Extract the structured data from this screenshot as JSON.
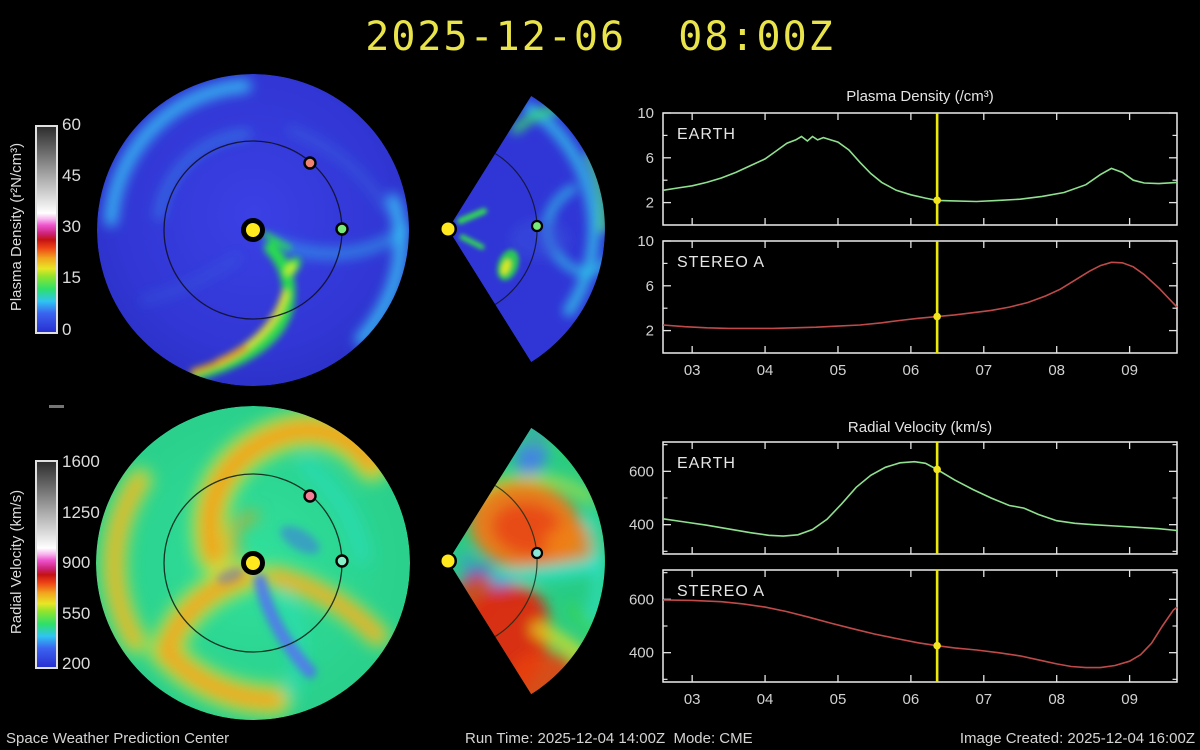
{
  "title": "2025-12-06  08:00Z",
  "footer": {
    "left": "Space Weather Prediction Center",
    "center": "Run Time: 2025-12-04 14:00Z  Mode: CME",
    "right": "Image Created: 2025-12-04 16:00Z"
  },
  "colorbars": [
    {
      "label": "Plasma Density (r²N/cm³)",
      "ticks": [
        "60",
        "45",
        "30",
        "15",
        "0"
      ],
      "gradient": [
        "#2830d0 0%",
        "#3b62f0 9%",
        "#2fc4f2 15%",
        "#2ee06a 21%",
        "#8ee42e 27%",
        "#e8e626 31%",
        "#f2a61e 36%",
        "#ee4416 41%",
        "#c41212 45%",
        "#cc2277 48%",
        "#ee52cc 52%",
        "#f8b4ee 55%",
        "#ffffff 58%",
        "#d8d8d8 66%",
        "#a8a8a8 76%",
        "#6a6a6a 88%",
        "#2e2e2e 100%"
      ]
    },
    {
      "label": "Radial Velocity (km/s)",
      "ticks": [
        "1600",
        "1250",
        "900",
        "550",
        "200"
      ],
      "gradient": [
        "#2830d0 0%",
        "#3b62f0 9%",
        "#2fc4f2 15%",
        "#2ee06a 21%",
        "#8ee42e 27%",
        "#e8e626 31%",
        "#f2a61e 36%",
        "#ee4416 41%",
        "#c41212 45%",
        "#cc2277 48%",
        "#ee52cc 52%",
        "#f8b4ee 55%",
        "#ffffff 58%",
        "#d8d8d8 66%",
        "#a8a8a8 76%",
        "#6a6a6a 88%",
        "#2e2e2e 100%"
      ]
    }
  ],
  "maps": {
    "sun_color": "#ffe81e",
    "earth_color": "#78e878",
    "stereo_a_color": "#f08272",
    "orbit_color": "#10102a"
  },
  "chart_data": [
    {
      "id": "density-earth",
      "type": "line",
      "group_title": "Plasma Density (/cm³)",
      "label": "EARTH",
      "color": "#8fe08f",
      "xlim": [
        2.6,
        9.65
      ],
      "ylim": [
        0,
        10
      ],
      "yticks": [
        2,
        6,
        10
      ],
      "yticks_minor": [
        4,
        8
      ],
      "xticks": [
        3,
        4,
        5,
        6,
        7,
        8,
        9
      ],
      "xtick_labels": [
        "03",
        "04",
        "05",
        "06",
        "07",
        "08",
        "09"
      ],
      "show_xlabels": false,
      "now": 6.36,
      "x": [
        2.6,
        2.8,
        3.0,
        3.2,
        3.4,
        3.6,
        3.8,
        4.0,
        4.15,
        4.3,
        4.42,
        4.5,
        4.58,
        4.65,
        4.72,
        4.8,
        4.9,
        5.0,
        5.15,
        5.3,
        5.45,
        5.6,
        5.8,
        6.0,
        6.2,
        6.36,
        6.6,
        6.9,
        7.2,
        7.5,
        7.8,
        8.1,
        8.4,
        8.6,
        8.75,
        8.9,
        9.05,
        9.2,
        9.4,
        9.65
      ],
      "y": [
        3.1,
        3.3,
        3.5,
        3.8,
        4.2,
        4.7,
        5.3,
        5.9,
        6.6,
        7.3,
        7.6,
        7.9,
        7.5,
        7.9,
        7.6,
        7.8,
        7.6,
        7.4,
        6.7,
        5.6,
        4.6,
        3.8,
        3.1,
        2.7,
        2.4,
        2.2,
        2.15,
        2.1,
        2.2,
        2.3,
        2.55,
        2.9,
        3.6,
        4.5,
        5.05,
        4.7,
        4.0,
        3.75,
        3.7,
        3.8
      ]
    },
    {
      "id": "density-stereo-a",
      "type": "line",
      "group_title": "Plasma Density (/cm³)",
      "label": "STEREO A",
      "color": "#c04a4a",
      "xlim": [
        2.6,
        9.65
      ],
      "ylim": [
        0,
        10
      ],
      "yticks": [
        2,
        6,
        10
      ],
      "yticks_minor": [
        4,
        8
      ],
      "xticks": [
        3,
        4,
        5,
        6,
        7,
        8,
        9
      ],
      "xtick_labels": [
        "03",
        "04",
        "05",
        "06",
        "07",
        "08",
        "09"
      ],
      "show_xlabels": true,
      "now": 6.36,
      "x": [
        2.6,
        2.9,
        3.2,
        3.5,
        3.8,
        4.1,
        4.4,
        4.7,
        5.0,
        5.3,
        5.6,
        5.9,
        6.1,
        6.36,
        6.6,
        6.85,
        7.1,
        7.35,
        7.6,
        7.85,
        8.05,
        8.25,
        8.45,
        8.6,
        8.75,
        8.9,
        9.05,
        9.2,
        9.4,
        9.65
      ],
      "y": [
        2.5,
        2.35,
        2.25,
        2.2,
        2.2,
        2.2,
        2.25,
        2.3,
        2.4,
        2.5,
        2.7,
        2.95,
        3.1,
        3.25,
        3.4,
        3.6,
        3.8,
        4.1,
        4.5,
        5.1,
        5.7,
        6.5,
        7.3,
        7.8,
        8.1,
        8.05,
        7.7,
        7.0,
        5.8,
        4.1
      ]
    },
    {
      "id": "velocity-earth",
      "type": "line",
      "group_title": "Radial Velocity (km/s)",
      "label": "EARTH",
      "color": "#8fe08f",
      "xlim": [
        2.6,
        9.65
      ],
      "ylim": [
        290,
        710
      ],
      "yticks": [
        400,
        600
      ],
      "yticks_minor": [
        300,
        500,
        700
      ],
      "xticks": [
        3,
        4,
        5,
        6,
        7,
        8,
        9
      ],
      "xtick_labels": [
        "03",
        "04",
        "05",
        "06",
        "07",
        "08",
        "09"
      ],
      "show_xlabels": false,
      "now": 6.36,
      "x": [
        2.6,
        2.9,
        3.2,
        3.5,
        3.8,
        4.05,
        4.25,
        4.45,
        4.65,
        4.85,
        5.05,
        5.25,
        5.45,
        5.65,
        5.85,
        6.05,
        6.2,
        6.36,
        6.6,
        6.85,
        7.1,
        7.35,
        7.55,
        7.75,
        8.0,
        8.25,
        8.5,
        8.8,
        9.1,
        9.4,
        9.65
      ],
      "y": [
        422,
        410,
        398,
        384,
        370,
        360,
        357,
        362,
        382,
        420,
        478,
        540,
        585,
        615,
        632,
        636,
        630,
        607,
        568,
        532,
        500,
        472,
        462,
        438,
        415,
        405,
        400,
        395,
        390,
        385,
        378
      ]
    },
    {
      "id": "velocity-stereo-a",
      "type": "line",
      "group_title": "Radial Velocity (km/s)",
      "label": "STEREO A",
      "color": "#c04a4a",
      "xlim": [
        2.6,
        9.65
      ],
      "ylim": [
        290,
        710
      ],
      "yticks": [
        400,
        600
      ],
      "yticks_minor": [
        300,
        500,
        700
      ],
      "xticks": [
        3,
        4,
        5,
        6,
        7,
        8,
        9
      ],
      "xtick_labels": [
        "03",
        "04",
        "05",
        "06",
        "07",
        "08",
        "09"
      ],
      "show_xlabels": true,
      "now": 6.36,
      "x": [
        2.6,
        3.0,
        3.4,
        3.7,
        4.0,
        4.3,
        4.6,
        4.9,
        5.2,
        5.5,
        5.8,
        6.1,
        6.36,
        6.6,
        6.9,
        7.2,
        7.5,
        7.8,
        8.0,
        8.2,
        8.4,
        8.6,
        8.8,
        9.0,
        9.15,
        9.3,
        9.45,
        9.6,
        9.65
      ],
      "y": [
        598,
        596,
        591,
        583,
        571,
        554,
        533,
        511,
        490,
        470,
        453,
        437,
        426,
        418,
        410,
        400,
        388,
        370,
        358,
        348,
        344,
        344,
        352,
        368,
        392,
        435,
        500,
        560,
        570
      ]
    }
  ]
}
